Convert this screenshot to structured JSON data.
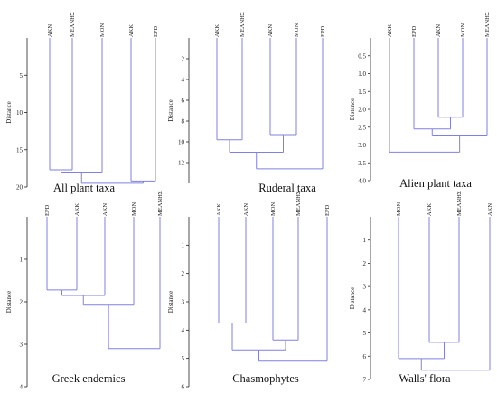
{
  "chart_data": [
    {
      "type": "dendrogram",
      "title": "All plant taxa",
      "ylabel": "Distance",
      "ylim": [
        0,
        20
      ],
      "yticks": [
        "5",
        "10",
        "15",
        "20"
      ],
      "leaves": [
        "AKN",
        "ΜΕΛΝΗΣ",
        "MON",
        "AKK",
        "EPD"
      ],
      "merges": [
        [
          0,
          1,
          17.7
        ],
        [
          5,
          2,
          18.0
        ],
        [
          3,
          4,
          19.2
        ],
        [
          6,
          7,
          19.5
        ]
      ],
      "line_color": "#8080e0"
    },
    {
      "type": "dendrogram",
      "title": "Ruderal taxa",
      "ylabel": "Distance",
      "ylim": [
        0,
        14
      ],
      "yticks": [
        "2",
        "4",
        "6",
        "8",
        "10",
        "12"
      ],
      "leaves": [
        "AKK",
        "ΜΕΛΝΗΣ",
        "AKN",
        "MON",
        "EPD"
      ],
      "merges": [
        [
          2,
          3,
          9.3
        ],
        [
          0,
          1,
          9.8
        ],
        [
          6,
          5,
          11.0
        ],
        [
          7,
          4,
          12.6
        ]
      ],
      "line_color": "#8080e0"
    },
    {
      "type": "dendrogram",
      "title": "Alien plant taxa",
      "ylabel": "Distance",
      "ylim": [
        0,
        4
      ],
      "yticks": [
        "0.5",
        "1.0",
        "1.5",
        "2.0",
        "2.5",
        "3.0",
        "3.5",
        "4.0"
      ],
      "leaves": [
        "AKK",
        "EPD",
        "AKN",
        "MON",
        "ΜΕΛΝΗΣ"
      ],
      "merges": [
        [
          2,
          3,
          2.22
        ],
        [
          1,
          5,
          2.55
        ],
        [
          6,
          4,
          2.72
        ],
        [
          0,
          7,
          3.2
        ]
      ],
      "line_color": "#8080e0"
    },
    {
      "type": "dendrogram",
      "title": "Greek endemics",
      "ylabel": "Distance",
      "ylim": [
        0,
        4
      ],
      "yticks": [
        "1",
        "2",
        "3",
        "4"
      ],
      "leaves": [
        "EPD",
        "AKK",
        "AKN",
        "MON",
        "ΜΕΛΝΗΣ"
      ],
      "merges": [
        [
          0,
          1,
          1.72
        ],
        [
          5,
          2,
          1.85
        ],
        [
          6,
          3,
          2.08
        ],
        [
          7,
          4,
          3.1
        ]
      ],
      "line_color": "#8080e0"
    },
    {
      "type": "dendrogram",
      "title": "Chasmophytes",
      "ylabel": "Distance",
      "ylim": [
        0,
        6
      ],
      "yticks": [
        "1",
        "2",
        "3",
        "4",
        "5",
        "6"
      ],
      "leaves": [
        "AKK",
        "AKN",
        "MON",
        "ΜΕΛΝΗΣ",
        "EPD"
      ],
      "merges": [
        [
          0,
          1,
          3.75
        ],
        [
          2,
          3,
          4.35
        ],
        [
          5,
          6,
          4.7
        ],
        [
          7,
          4,
          5.1
        ]
      ],
      "line_color": "#8080e0"
    },
    {
      "type": "dendrogram",
      "title": "Walls' flora",
      "ylabel": "Distance",
      "ylim": [
        0,
        7
      ],
      "yticks": [
        "1",
        "2",
        "3",
        "4",
        "5",
        "6",
        "7"
      ],
      "leaves": [
        "MON",
        "AKK",
        "ΜΕΛΝΗΣ",
        "AKN"
      ],
      "merges": [
        [
          1,
          2,
          5.4
        ],
        [
          0,
          4,
          6.1
        ],
        [
          5,
          3,
          6.6
        ]
      ],
      "line_color": "#8080e0"
    }
  ]
}
